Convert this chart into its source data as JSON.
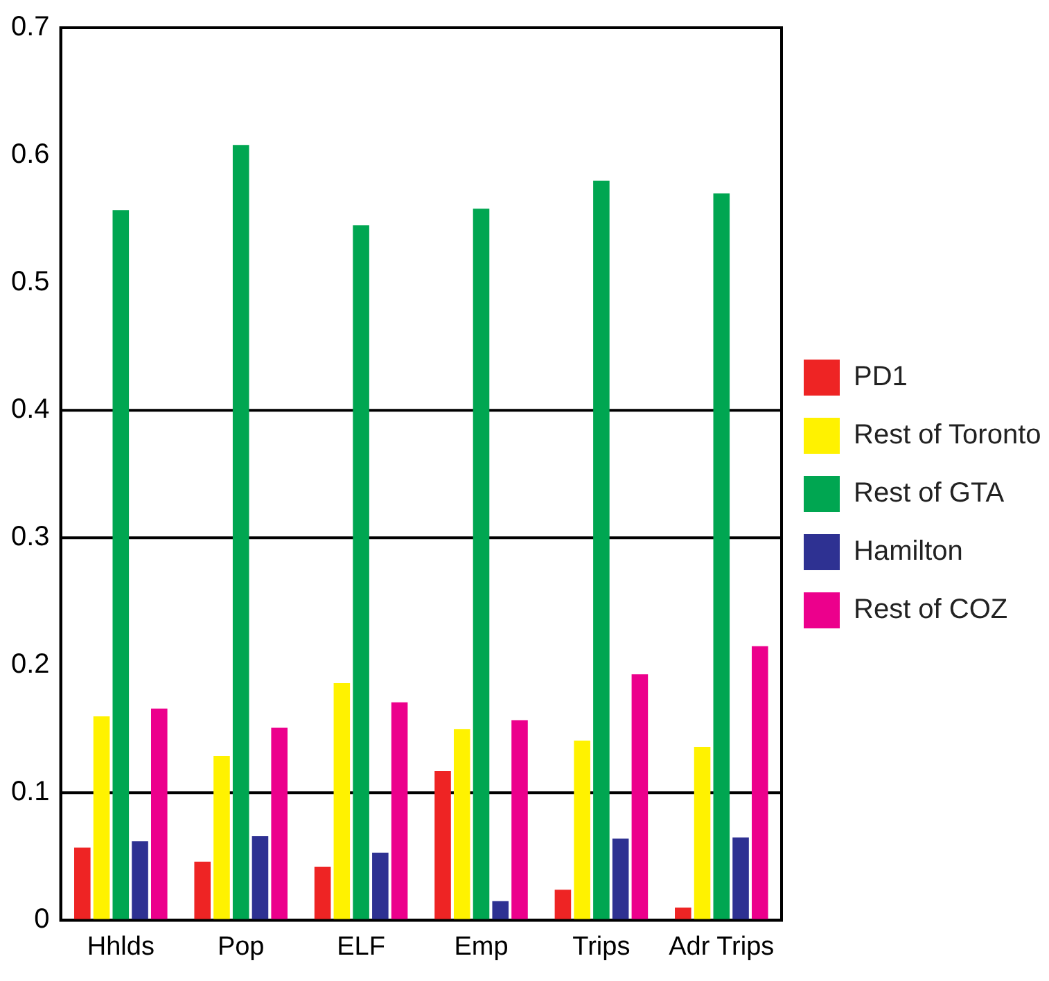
{
  "chart_data": {
    "type": "bar",
    "categories": [
      "Hhlds",
      "Pop",
      "ELF",
      "Emp",
      "Trips",
      "Adr Trips"
    ],
    "series": [
      {
        "name": "PD1",
        "color": "#ee2424",
        "values": [
          0.057,
          0.046,
          0.042,
          0.117,
          0.024,
          0.01
        ]
      },
      {
        "name": "Rest of Toronto",
        "color": "#fff200",
        "values": [
          0.16,
          0.129,
          0.186,
          0.15,
          0.141,
          0.136
        ]
      },
      {
        "name": "Rest of GTA",
        "color": "#00a651",
        "values": [
          0.557,
          0.608,
          0.545,
          0.558,
          0.58,
          0.57
        ]
      },
      {
        "name": "Hamilton",
        "color": "#2e3192",
        "values": [
          0.062,
          0.066,
          0.053,
          0.015,
          0.064,
          0.065
        ]
      },
      {
        "name": "Rest of COZ",
        "color": "#ec008c",
        "values": [
          0.166,
          0.151,
          0.171,
          0.157,
          0.193,
          0.215
        ]
      }
    ],
    "ylim": [
      0,
      0.7
    ],
    "yticks": [
      0,
      0.1,
      0.2,
      0.3,
      0.4,
      0.5,
      0.6,
      0.7
    ],
    "grid": false,
    "legend": "right",
    "ref_lines": [
      {
        "axis": "y",
        "value": 0.1
      },
      {
        "axis": "y",
        "value": 0.3
      },
      {
        "axis": "y",
        "value": 0.4
      }
    ]
  }
}
